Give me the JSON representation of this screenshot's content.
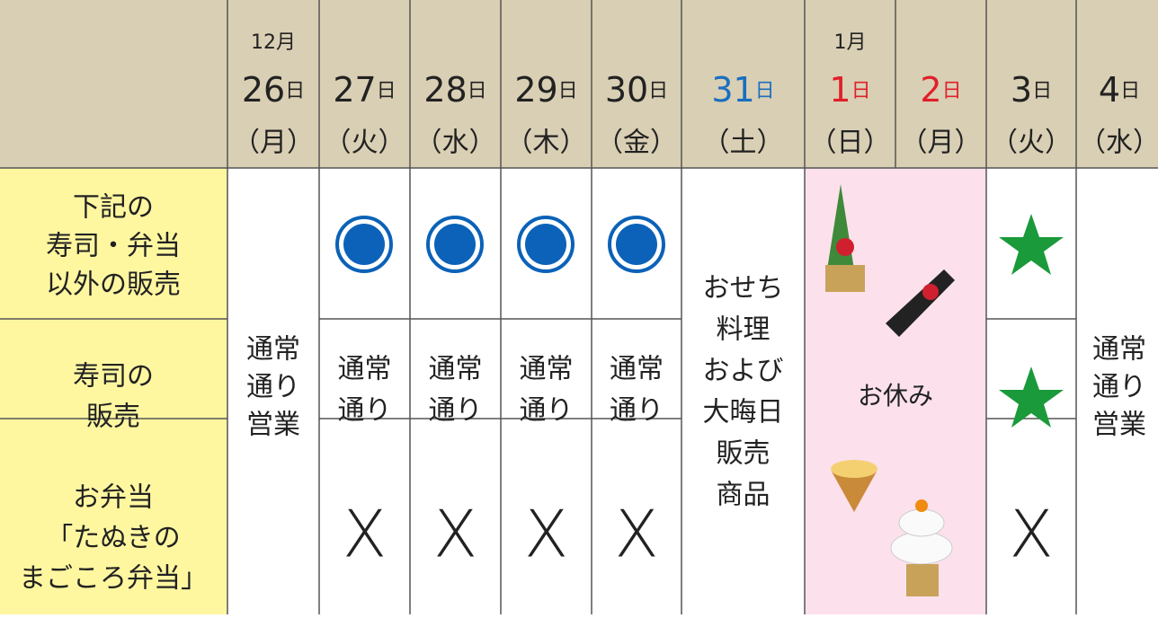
{
  "columns": [
    {
      "month": "12月",
      "day": "26",
      "unit": "日",
      "weekday": "（月）",
      "body": [
        "通常",
        "通り",
        "営業"
      ]
    },
    {
      "day": "27",
      "unit": "日",
      "weekday": "（火）",
      "row2": [
        "通常",
        "通り"
      ],
      "row3": "X"
    },
    {
      "day": "28",
      "unit": "日",
      "weekday": "（水）",
      "row2": [
        "通常",
        "通り"
      ],
      "row3": "X"
    },
    {
      "day": "29",
      "unit": "日",
      "weekday": "（木）",
      "row2": [
        "通常",
        "通り"
      ],
      "row3": "X"
    },
    {
      "day": "30",
      "unit": "日",
      "weekday": "（金）",
      "row2": [
        "通常",
        "通り"
      ],
      "row3": "X"
    },
    {
      "day": "31",
      "unit": "日",
      "weekday": "（土）",
      "color": "#1a6fbf",
      "body": [
        "おせち",
        "料理",
        "および"
      ],
      "body_highlight": [
        "大晦日",
        "販売",
        "商品"
      ]
    },
    {
      "month": "1月",
      "day": "1",
      "unit": "日",
      "weekday": "（日）",
      "color": "#e0202a"
    },
    {
      "day": "2",
      "unit": "日",
      "weekday": "（月）",
      "color": "#e0202a"
    },
    {
      "day": "3",
      "unit": "日",
      "weekday": "（火）",
      "row3": "X"
    },
    {
      "day": "4",
      "unit": "日",
      "weekday": "（水）",
      "body": [
        "通常",
        "通り",
        "営業"
      ]
    }
  ],
  "rows": [
    {
      "label": [
        "下記の",
        "寿司・弁当",
        "以外の販売"
      ]
    },
    {
      "label": [
        "寿司の",
        "販売"
      ]
    },
    {
      "label": [
        "お弁当",
        "「たぬきの",
        "まごころ弁当」"
      ]
    }
  ],
  "holiday": {
    "label": "お休み",
    "color": "#e0202a"
  }
}
